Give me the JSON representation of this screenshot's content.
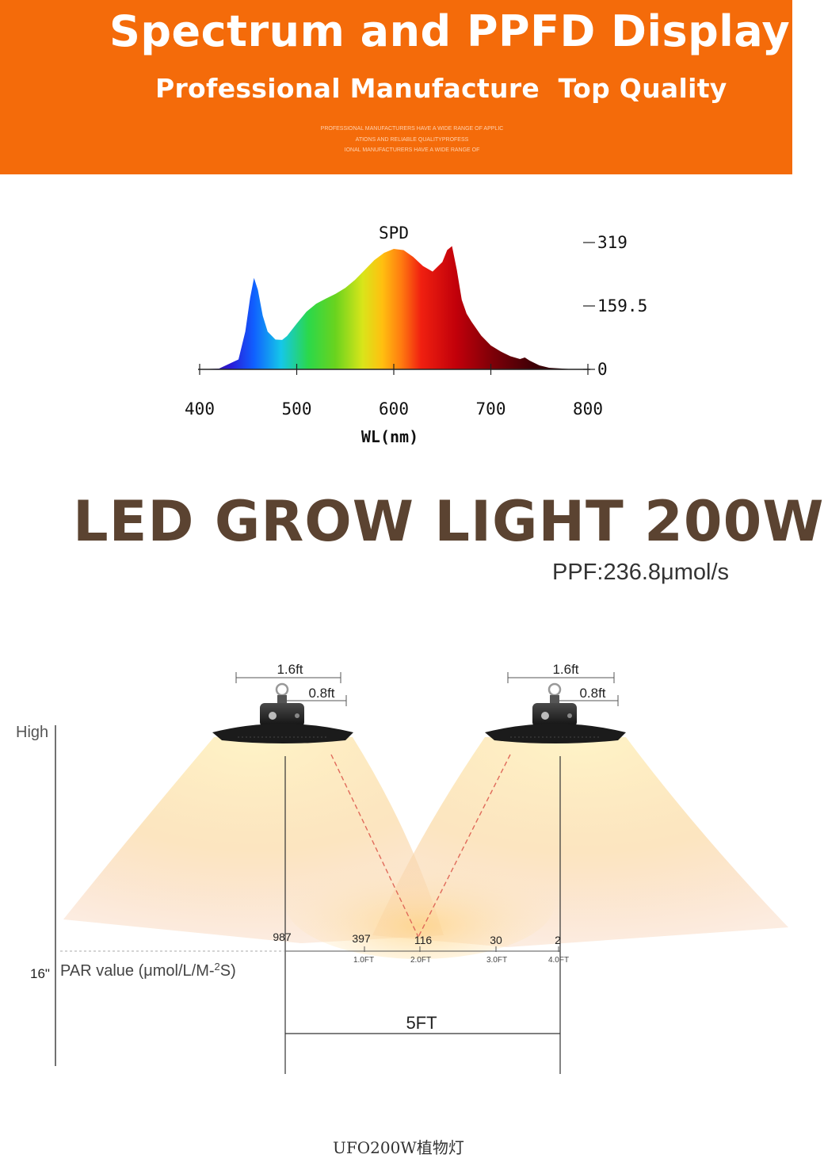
{
  "banner": {
    "title": "Spectrum and PPFD Display",
    "subtitle": "Professional Manufacture  Top Quality",
    "fine_print": [
      "PROFESSIONAL MANUFACTURERS HAVE A WIDE RANGE OF APPLIC",
      "ATIONS AND RELIABLE QUALITYPROFESS",
      "IONAL MANUFACTURERS HAVE A WIDE RANGE OF"
    ],
    "bg_color": "#f46b0a"
  },
  "chart_data": {
    "type": "area",
    "title": "SPD",
    "xlabel": "WL(nm)",
    "ylabel": "",
    "xlim": [
      400,
      800
    ],
    "ylim": [
      0,
      319
    ],
    "x_ticks": [
      "400",
      "500",
      "600",
      "700",
      "800"
    ],
    "y_ticks": [
      "319",
      "159.5",
      "0"
    ],
    "series": [
      {
        "x": [
          400,
          420,
          440,
          447,
          452,
          456,
          460,
          465,
          470,
          478,
          485,
          490,
          500,
          510,
          520,
          530,
          540,
          550,
          560,
          570,
          580,
          590,
          600,
          610,
          620,
          630,
          640,
          650,
          655,
          660,
          665,
          670,
          675,
          680,
          690,
          700,
          710,
          720,
          730,
          735,
          740,
          750,
          760,
          780,
          800
        ],
        "y": [
          0,
          2,
          25,
          95,
          180,
          230,
          200,
          135,
          95,
          75,
          74,
          84,
          115,
          145,
          165,
          178,
          190,
          205,
          225,
          250,
          275,
          293,
          303,
          300,
          283,
          260,
          246,
          270,
          300,
          310,
          250,
          175,
          140,
          120,
          85,
          60,
          45,
          33,
          26,
          30,
          22,
          10,
          4,
          1,
          0
        ]
      }
    ]
  },
  "product": {
    "title": "LED GROW LIGHT 200W",
    "ppf": "PPF:236.8μmol/s"
  },
  "ppfd": {
    "spans": [
      "1.6ft",
      "0.8ft"
    ],
    "high_label": "High",
    "height_label": "16\"",
    "par_label": "PAR value (μmol/L/M-",
    "par_sup": "2",
    "par_tail": "S)",
    "values": [
      "987",
      "397",
      "116",
      "30",
      "2"
    ],
    "distances": [
      "1.0FT",
      "2.0FT",
      "3.0FT",
      "4.0FT"
    ],
    "spacing": "5FT"
  },
  "footer_cut": "UFO200W植物灯"
}
